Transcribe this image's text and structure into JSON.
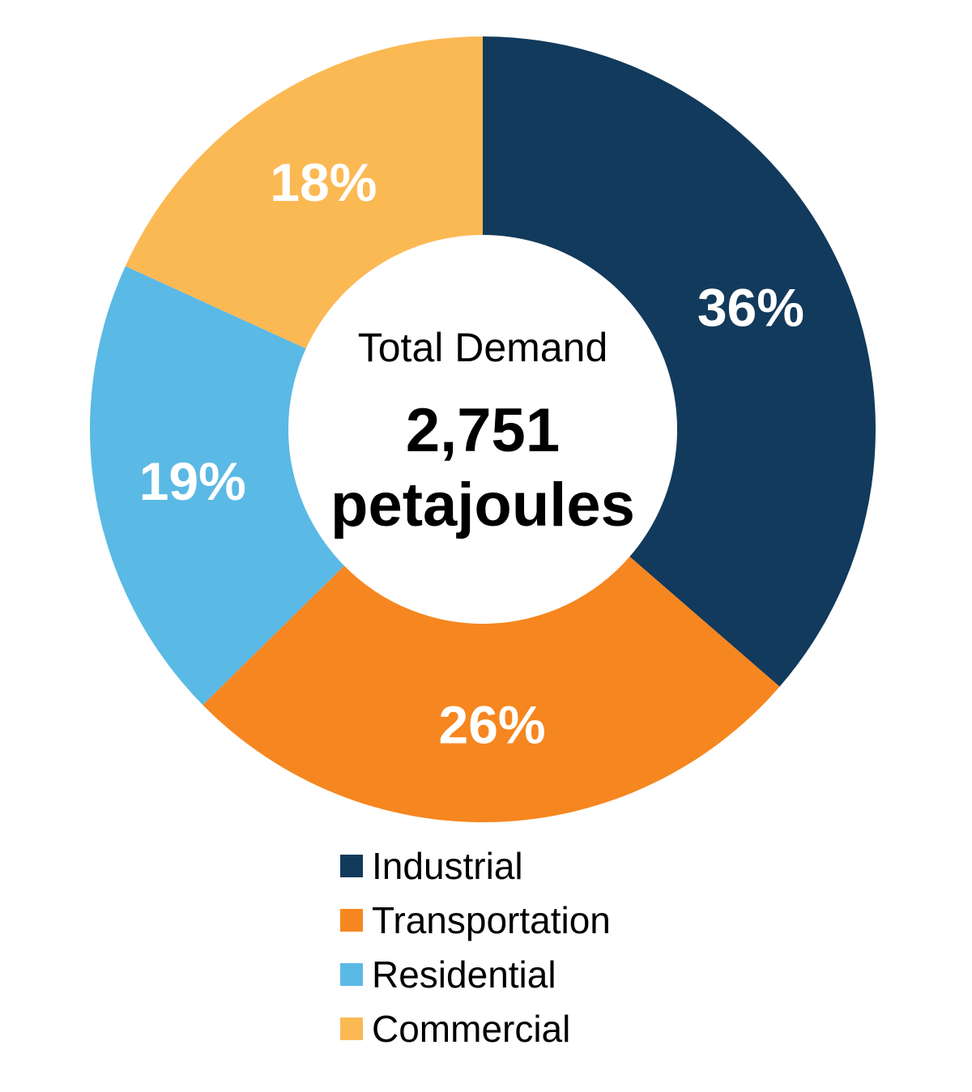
{
  "chart_data": {
    "type": "pie",
    "subtype": "donut",
    "categories": [
      "Industrial",
      "Transportation",
      "Residential",
      "Commercial"
    ],
    "values": [
      36,
      26,
      19,
      18
    ],
    "slice_labels": [
      "36%",
      "26%",
      "19%",
      "18%"
    ],
    "colors": [
      "#123A5C",
      "#F6861F",
      "#5BB9E5",
      "#FBB954"
    ],
    "slice_label_color": "#FFFFFF",
    "start_angle_deg": 0,
    "direction": "clockwise",
    "center": {
      "title": "Total Demand",
      "value": "2,751",
      "unit": "petajoules"
    },
    "legend_position": "bottom-left",
    "legend": [
      "Industrial",
      "Transportation",
      "Residential",
      "Commercial"
    ]
  }
}
